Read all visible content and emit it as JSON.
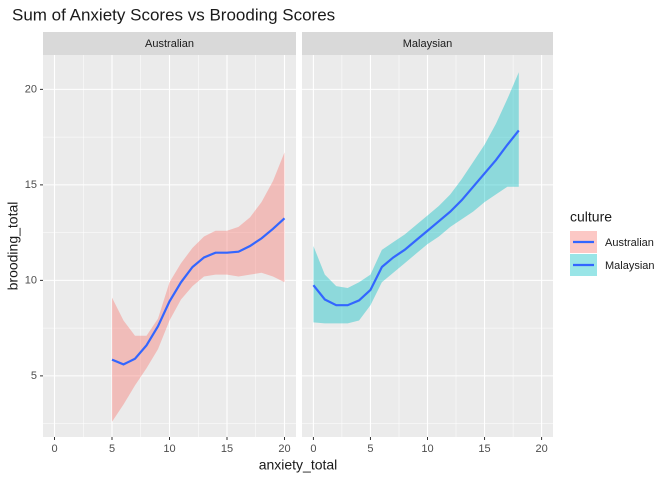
{
  "title": "Sum of Anxiety Scores vs Brooding Scores",
  "x_label": "anxiety_total",
  "y_label": "brooding_total",
  "legend_title": "culture",
  "chart_data": [
    {
      "type": "line",
      "title": "Australian",
      "x": [
        5,
        6,
        7,
        8,
        9,
        10,
        11,
        12,
        13,
        14,
        15,
        16,
        17,
        18,
        19,
        20
      ],
      "series": [
        {
          "name": "Australian",
          "color": "#3366FF",
          "fill": "#F8766D",
          "values": [
            5.85,
            5.6,
            5.9,
            6.6,
            7.6,
            8.9,
            9.9,
            10.7,
            11.2,
            11.45,
            11.45,
            11.5,
            11.8,
            12.2,
            12.7,
            13.25
          ],
          "upper": [
            9.1,
            7.9,
            7.1,
            7.1,
            8.0,
            9.9,
            10.9,
            11.7,
            12.3,
            12.6,
            12.6,
            12.8,
            13.3,
            14.1,
            15.2,
            16.7
          ],
          "lower": [
            2.6,
            3.5,
            4.5,
            5.4,
            6.4,
            7.9,
            9.0,
            9.7,
            10.2,
            10.3,
            10.3,
            10.2,
            10.3,
            10.4,
            10.2,
            9.9
          ]
        }
      ],
      "xlim": [
        -1,
        21
      ],
      "ylim": [
        1.8,
        21.8
      ],
      "xticks": [
        0,
        5,
        10,
        15,
        20
      ],
      "yticks": [
        5,
        10,
        15,
        20
      ],
      "grid": true
    },
    {
      "type": "line",
      "title": "Malaysian",
      "x": [
        0,
        1,
        2,
        3,
        4,
        5,
        6,
        7,
        8,
        9,
        10,
        11,
        12,
        13,
        14,
        15,
        16,
        17,
        18
      ],
      "series": [
        {
          "name": "Malaysian",
          "color": "#3366FF",
          "fill": "#00BFC4",
          "values": [
            9.75,
            9.0,
            8.7,
            8.7,
            8.95,
            9.5,
            10.7,
            11.2,
            11.6,
            12.1,
            12.6,
            13.1,
            13.6,
            14.2,
            14.9,
            15.6,
            16.3,
            17.1,
            17.85
          ],
          "upper": [
            11.8,
            10.3,
            9.7,
            9.6,
            9.9,
            10.3,
            11.6,
            12.0,
            12.4,
            12.9,
            13.4,
            13.9,
            14.5,
            15.3,
            16.2,
            17.1,
            18.2,
            19.5,
            20.9
          ],
          "lower": [
            7.8,
            7.75,
            7.75,
            7.75,
            7.9,
            8.7,
            9.9,
            10.4,
            10.9,
            11.4,
            11.9,
            12.3,
            12.8,
            13.2,
            13.6,
            14.1,
            14.5,
            14.9,
            14.9
          ]
        }
      ],
      "xlim": [
        -1,
        21
      ],
      "ylim": [
        1.8,
        21.8
      ],
      "xticks": [
        0,
        5,
        10,
        15,
        20
      ],
      "yticks": [
        5,
        10,
        15,
        20
      ],
      "grid": true
    }
  ]
}
